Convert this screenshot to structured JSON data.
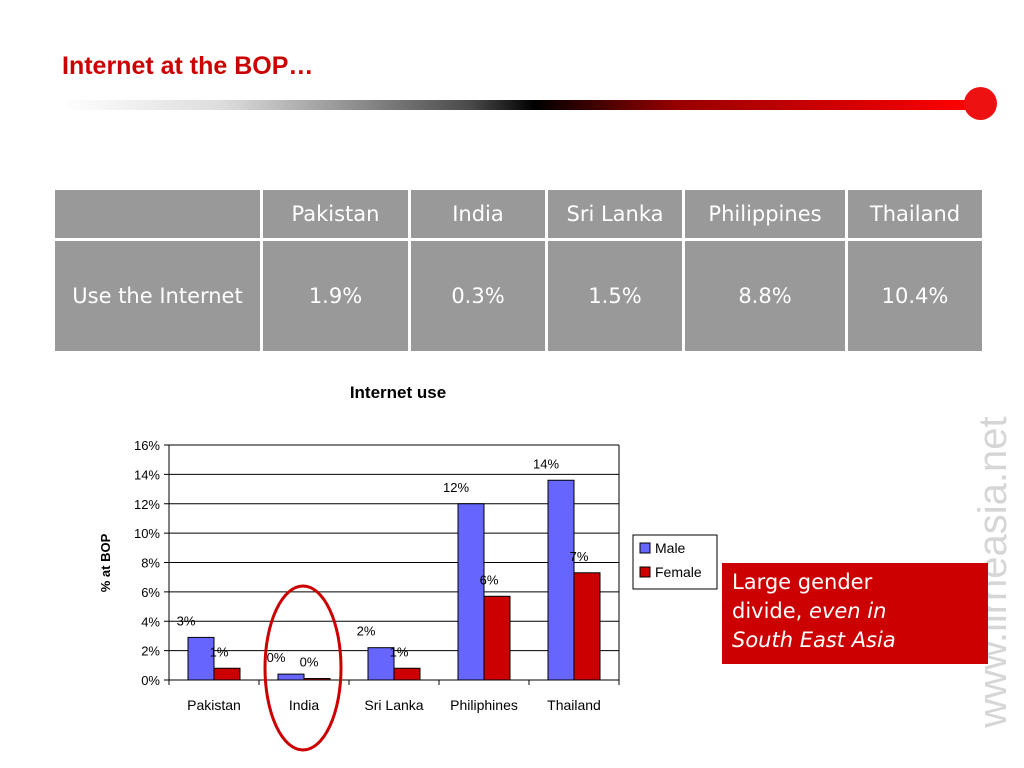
{
  "slide": {
    "title": "Internet at the BOP…",
    "watermark": "www.lirneasia.net",
    "callout": {
      "line1": "Large gender",
      "line2_plain": "divide, ",
      "line2_italic": "even in",
      "line3_italic": "South East Asia"
    }
  },
  "table": {
    "headers": [
      "",
      "Pakistan",
      "India",
      "Sri Lanka",
      "Philippines",
      "Thailand"
    ],
    "rows": [
      [
        "Use the Internet",
        "1.9%",
        "0.3%",
        "1.5%",
        "8.8%",
        "10.4%"
      ]
    ]
  },
  "colors": {
    "accent": "#cc0000",
    "male": "#6666ff",
    "female": "#cc0000",
    "table_bg": "#999999"
  },
  "chart_data": {
    "type": "bar",
    "title": "Internet use",
    "ylabel": "% at BOP",
    "xlabel": "",
    "categories": [
      "Pakistan",
      "India",
      "Sri Lanka",
      "Philiphines",
      "Thailand"
    ],
    "ylim": [
      0,
      16
    ],
    "yticks": [
      "0%",
      "2%",
      "4%",
      "6%",
      "8%",
      "10%",
      "12%",
      "14%",
      "16%"
    ],
    "grid": true,
    "legend": "right",
    "series": [
      {
        "name": "Male",
        "color": "#6666ff",
        "values": [
          2.9,
          0.4,
          2.2,
          12.0,
          13.6
        ],
        "labels": [
          "3%",
          "0%",
          "2%",
          "12%",
          "14%"
        ]
      },
      {
        "name": "Female",
        "color": "#cc0000",
        "values": [
          0.8,
          0.1,
          0.8,
          5.7,
          7.3
        ],
        "labels": [
          "1%",
          "0%",
          "1%",
          "6%",
          "7%"
        ]
      }
    ],
    "annotation": "India highlighted with red ellipse"
  }
}
